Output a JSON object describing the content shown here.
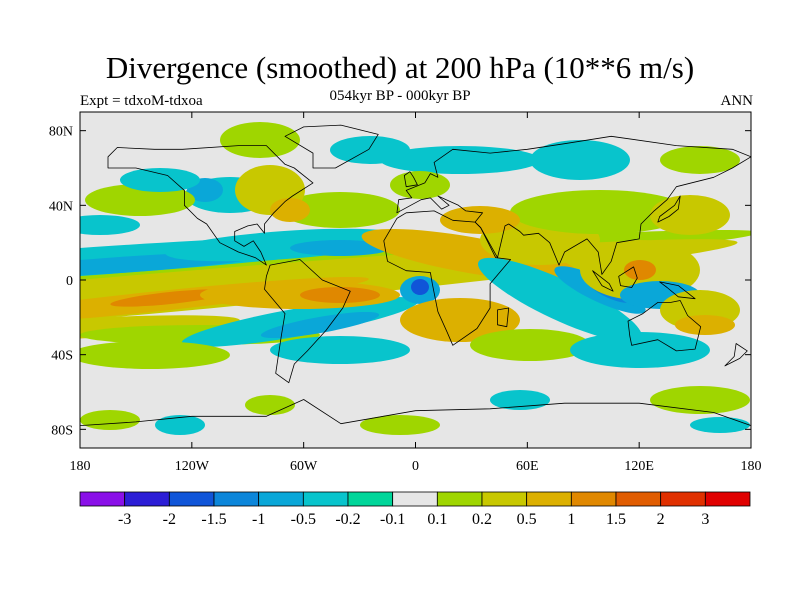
{
  "title": "Divergence (smoothed) at 200 hPa (10**6 m/s)",
  "subtitle": "054kyr BP - 000kyr BP",
  "left_label": "Expt = tdxoM-tdxoa",
  "right_label": "ANN",
  "axes": {
    "x_ticks": [
      "180",
      "120W",
      "60W",
      "0",
      "60E",
      "120E",
      "180"
    ],
    "y_ticks": [
      "80N",
      "40N",
      "0",
      "40S",
      "80S"
    ]
  },
  "colorbar": {
    "labels": [
      "-3",
      "-2",
      "-1.5",
      "-1",
      "-0.5",
      "-0.2",
      "-0.1",
      "0.1",
      "0.2",
      "0.5",
      "1",
      "1.5",
      "2",
      "3"
    ],
    "colors": [
      "#8a10e8",
      "#2c1ed6",
      "#1055d8",
      "#0c86da",
      "#0aa7d8",
      "#08c4cc",
      "#00d69a",
      "#e6e6e6",
      "#9fd600",
      "#c8c800",
      "#dcb000",
      "#e08800",
      "#e05c00",
      "#e03000",
      "#e00000"
    ]
  },
  "palette": {
    "neutral": "#e6e6e6",
    "green": "#00d69a",
    "cyan": "#08c4cc",
    "lightblue": "#0aa7d8",
    "blue": "#0c86da",
    "deepblue": "#1055d8",
    "lime": "#9fd600",
    "yellow": "#c8c800",
    "gold": "#dcb000",
    "orange": "#e08800",
    "red": "#e05c00"
  }
}
